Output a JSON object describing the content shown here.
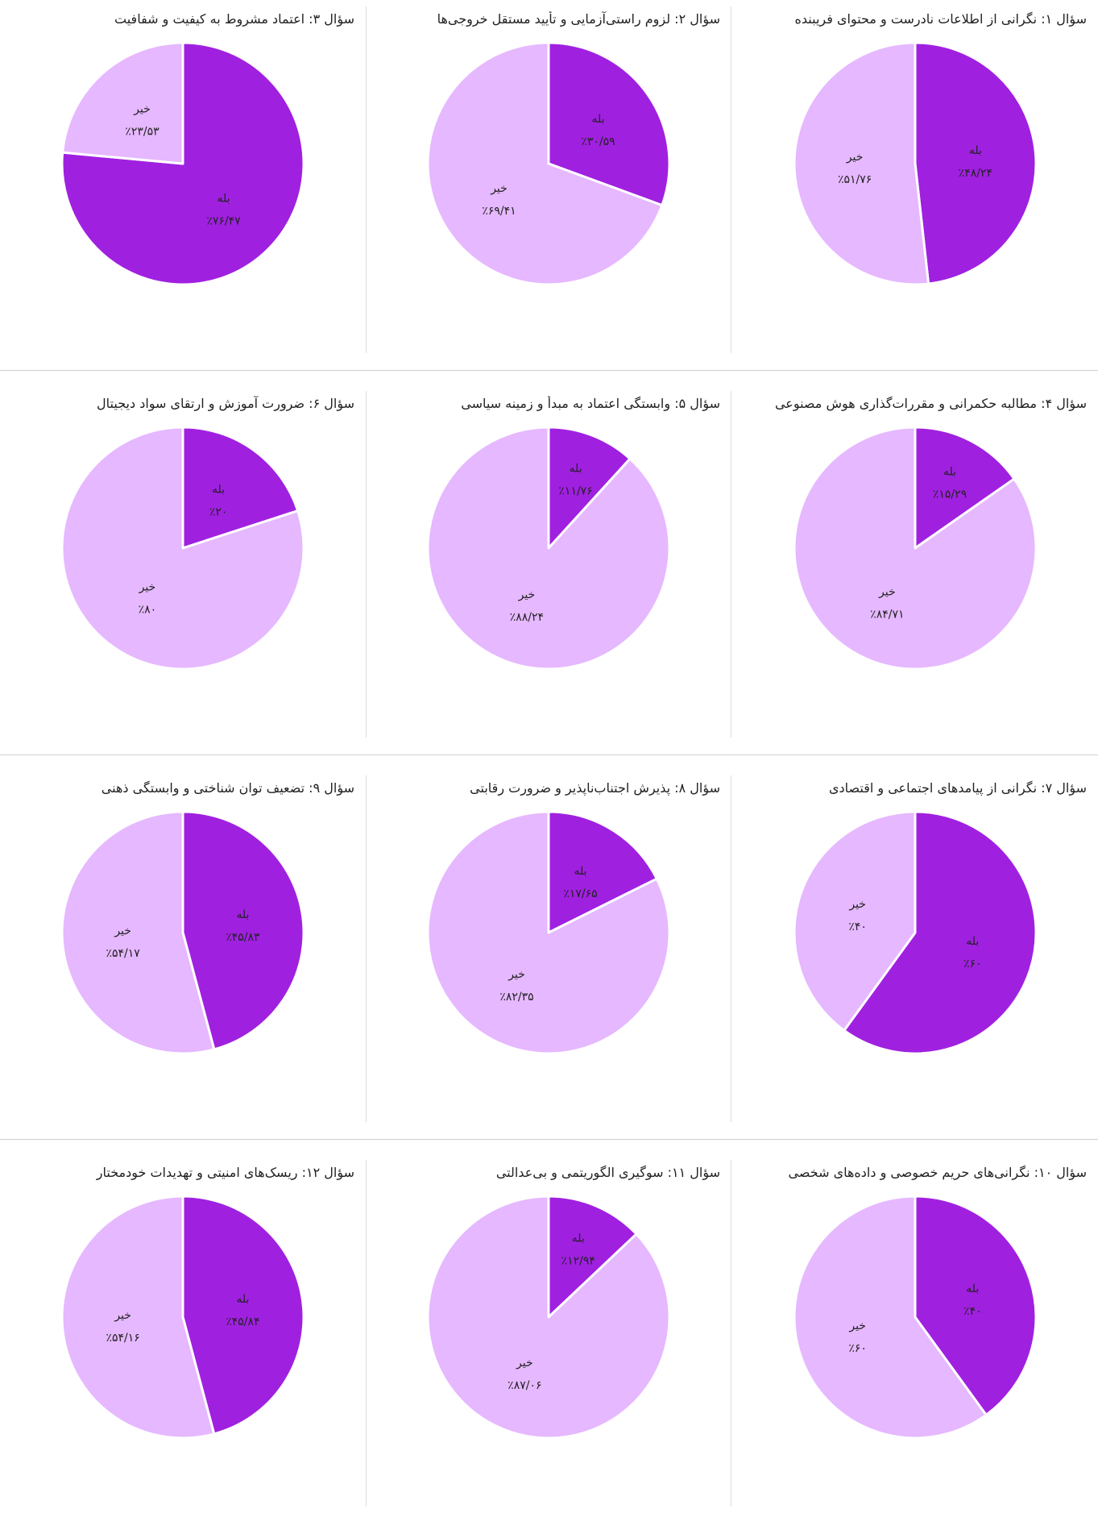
{
  "colors": {
    "yes": "#a020e0",
    "no": "#e6b8ff",
    "stroke": "#ffffff",
    "text": "#222222"
  },
  "chart_data": [
    {
      "type": "pie",
      "title": "سؤال ۱: نگرانی از اطلاعات نادرست و محتوای فریبنده",
      "categories": [
        "بله",
        "خیر"
      ],
      "values": [
        48.24,
        51.76
      ],
      "value_labels": [
        "٪۴۸/۲۴",
        "٪۵۱/۷۶"
      ]
    },
    {
      "type": "pie",
      "title": "سؤال ۲: لزوم راستی‌آزمایی و تأیید مستقل خروجی‌ها",
      "categories": [
        "بله",
        "خیر"
      ],
      "values": [
        30.59,
        69.41
      ],
      "value_labels": [
        "٪۳۰/۵۹",
        "٪۶۹/۴۱"
      ]
    },
    {
      "type": "pie",
      "title": "سؤال ۳: اعتماد مشروط به کیفیت و شفافیت",
      "categories": [
        "بله",
        "خیر"
      ],
      "values": [
        76.47,
        23.53
      ],
      "value_labels": [
        "٪۷۶/۴۷",
        "٪۲۳/۵۳"
      ]
    },
    {
      "type": "pie",
      "title": "سؤال ۴: مطالبه حکمرانی و مقررات‌گذاری هوش مصنوعی",
      "categories": [
        "بله",
        "خیر"
      ],
      "values": [
        15.29,
        84.71
      ],
      "value_labels": [
        "٪۱۵/۲۹",
        "٪۸۴/۷۱"
      ]
    },
    {
      "type": "pie",
      "title": "سؤال ۵: وابستگی اعتماد به مبدأ و زمینه سیاسی",
      "categories": [
        "بله",
        "خیر"
      ],
      "values": [
        11.76,
        88.24
      ],
      "value_labels": [
        "٪۱۱/۷۶",
        "٪۸۸/۲۴"
      ]
    },
    {
      "type": "pie",
      "title": "سؤال ۶: ضرورت آموزش و ارتقای سواد دیجیتال",
      "categories": [
        "بله",
        "خیر"
      ],
      "values": [
        20,
        80
      ],
      "value_labels": [
        "٪۲۰",
        "٪۸۰"
      ]
    },
    {
      "type": "pie",
      "title": "سؤال ۷: نگرانی از پیامدهای اجتماعی و اقتصادی",
      "categories": [
        "بله",
        "خیر"
      ],
      "values": [
        60,
        40
      ],
      "value_labels": [
        "٪۶۰",
        "٪۴۰"
      ]
    },
    {
      "type": "pie",
      "title": "سؤال ۸: پذیرش اجتناب‌ناپذیر و ضرورت رقابتی",
      "categories": [
        "بله",
        "خیر"
      ],
      "values": [
        17.65,
        82.35
      ],
      "value_labels": [
        "٪۱۷/۶۵",
        "٪۸۲/۳۵"
      ]
    },
    {
      "type": "pie",
      "title": "سؤال ۹: تضعیف توان شناختی و وابستگی ذهنی",
      "categories": [
        "بله",
        "خیر"
      ],
      "values": [
        45.83,
        54.17
      ],
      "value_labels": [
        "٪۴۵/۸۳",
        "٪۵۴/۱۷"
      ]
    },
    {
      "type": "pie",
      "title": "سؤال ۱۰: نگرانی‌های حریم خصوصی و داده‌های شخصی",
      "categories": [
        "بله",
        "خیر"
      ],
      "values": [
        40,
        60
      ],
      "value_labels": [
        "٪۴۰",
        "٪۶۰"
      ]
    },
    {
      "type": "pie",
      "title": "سؤال ۱۱: سوگیری الگوریتمی و بی‌عدالتی",
      "categories": [
        "بله",
        "خیر"
      ],
      "values": [
        12.94,
        87.06
      ],
      "value_labels": [
        "٪۱۲/۹۴",
        "٪۸۷/۰۶"
      ]
    },
    {
      "type": "pie",
      "title": "سؤال ۱۲: ریسک‌های امنیتی و تهدیدات خودمختار",
      "categories": [
        "بله",
        "خیر"
      ],
      "values": [
        45.84,
        54.16
      ],
      "value_labels": [
        "٪۴۵/۸۴",
        "٪۵۴/۱۶"
      ]
    }
  ]
}
